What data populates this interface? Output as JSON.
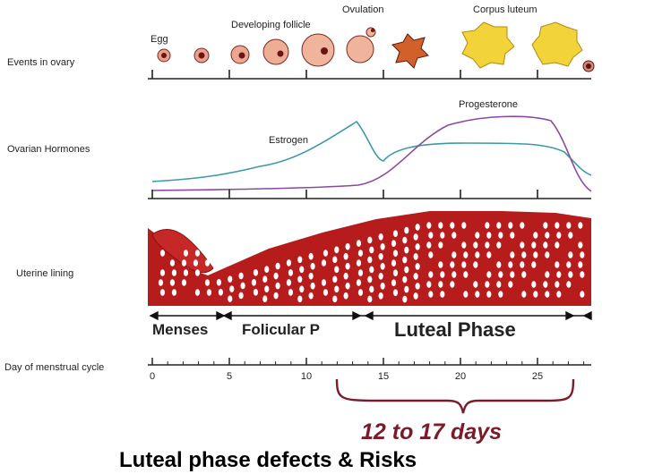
{
  "rows": [
    "Events in ovary",
    "Ovarian Hormones",
    "Uterine lining",
    "Day of menstrual cycle"
  ],
  "ovary_labels": [
    "Egg",
    "Developing follicle",
    "Ovulation",
    "Corpus luteum"
  ],
  "hormones": [
    "Estrogen",
    "Progesterone"
  ],
  "phases": [
    "Menses",
    "Folicular P",
    "Luteal Phase"
  ],
  "day_ticks": [
    0,
    5,
    10,
    15,
    20,
    25
  ],
  "bracket_label": "12 to 17 days",
  "footer": "Luteal phase defects & Risks"
}
